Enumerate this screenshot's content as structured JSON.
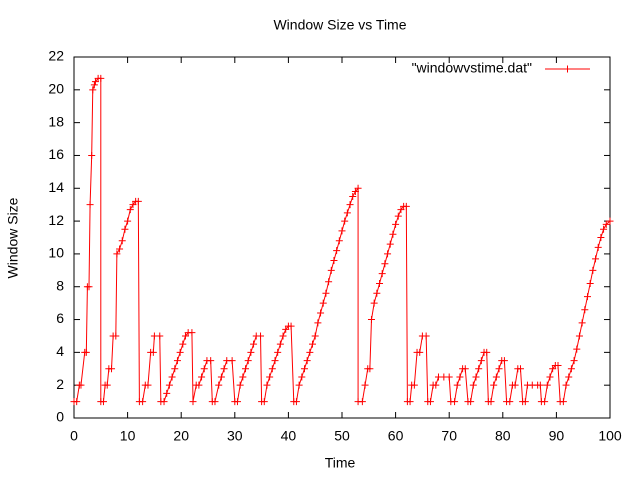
{
  "chart_data": {
    "type": "line",
    "title": "Window Size vs Time",
    "x_label": "Time",
    "y_label": "Window Size",
    "xlim": [
      0,
      100
    ],
    "xticks": [
      0,
      10,
      20,
      30,
      40,
      50,
      60,
      70,
      80,
      90,
      100
    ],
    "ylim": [
      0,
      22
    ],
    "yticks": [
      0,
      2,
      4,
      6,
      8,
      10,
      12,
      14,
      16,
      18,
      20,
      22
    ],
    "grid": false,
    "legend_position": "top-right",
    "series": [
      {
        "name": "\"windowvstime.dat\"",
        "color": "#ff0000",
        "x": [
          0,
          0.5,
          1,
          1.3,
          2,
          2.3,
          2.5,
          2.8,
          3,
          3.3,
          3.5,
          3.8,
          4,
          4.5,
          5,
          5,
          5.5,
          5.8,
          6.2,
          6.5,
          7,
          7.3,
          7.8,
          8,
          8.5,
          9,
          9.5,
          10,
          10.5,
          11,
          11.5,
          12,
          12.2,
          12.8,
          13.3,
          13.8,
          14.3,
          14.8,
          15,
          16,
          16.2,
          16.8,
          17.3,
          17.8,
          18.3,
          18.8,
          19.3,
          19.8,
          20.3,
          20.8,
          21.3,
          22,
          22.2,
          22.8,
          23.3,
          23.8,
          24.3,
          24.8,
          25.5,
          25.8,
          26.3,
          27,
          27.5,
          28,
          28.5,
          29.5,
          30,
          30.5,
          31,
          31.5,
          32,
          32.5,
          33,
          33.5,
          34,
          34.8,
          35,
          35.5,
          36,
          36.5,
          37,
          37.5,
          38,
          38.5,
          39,
          39.5,
          40,
          40.5,
          41,
          41.5,
          42,
          42.5,
          43,
          43.5,
          44,
          44.5,
          45,
          45.5,
          46,
          46.5,
          47,
          47.5,
          48,
          48.5,
          49,
          49.5,
          50,
          50.5,
          51,
          51.5,
          52,
          52.5,
          53,
          53,
          53.8,
          54.3,
          54.8,
          55.2,
          55.5,
          56,
          56.5,
          57,
          57.5,
          58,
          58.5,
          59,
          59.5,
          60,
          60.5,
          61,
          61.5,
          62,
          62.2,
          62.7,
          63,
          63.5,
          64,
          64.5,
          65,
          65.7,
          66,
          66.5,
          67,
          67.5,
          68,
          69,
          70,
          70.3,
          71,
          71.5,
          72,
          72.5,
          73,
          73.5,
          74,
          74.5,
          75,
          75.5,
          76,
          76.5,
          77,
          77.3,
          77.8,
          78.3,
          78.8,
          79.3,
          79.8,
          80.3,
          80.7,
          81.3,
          81.8,
          82.3,
          82.8,
          83.3,
          83.7,
          84.2,
          84.6,
          85.5,
          86.5,
          87,
          87.2,
          87.8,
          88.3,
          88.8,
          89.3,
          89.8,
          90.3,
          90.7,
          91.3,
          91.8,
          92.3,
          92.8,
          93.3,
          93.8,
          94.3,
          94.8,
          95.3,
          95.8,
          96.3,
          96.8,
          97.3,
          97.8,
          98.3,
          98.8,
          99.3,
          100
        ],
        "values": [
          1,
          1,
          2,
          2,
          4,
          4,
          8,
          8,
          13,
          16,
          20,
          20.3,
          20.5,
          20.7,
          20.7,
          1,
          1,
          2,
          2,
          3,
          3,
          5,
          5,
          10,
          10.3,
          10.8,
          11.5,
          12,
          12.7,
          13,
          13.2,
          13.2,
          1,
          1,
          2,
          2,
          4,
          4,
          5,
          5,
          1,
          1,
          1.5,
          2,
          2.5,
          3,
          3.5,
          4,
          4.5,
          5,
          5.2,
          5.2,
          1,
          2,
          2,
          2.5,
          3,
          3.5,
          3.5,
          1,
          1,
          2,
          2.5,
          3,
          3.5,
          3.5,
          1,
          1,
          2,
          2.5,
          3,
          3.5,
          4,
          4.5,
          5,
          5,
          1,
          1,
          2,
          2.5,
          3,
          3.5,
          4,
          4.5,
          5,
          5.4,
          5.6,
          5.6,
          1,
          1,
          2,
          2.5,
          3,
          3.5,
          4,
          4.5,
          5,
          5.8,
          6.4,
          7,
          7.6,
          8.3,
          9,
          9.6,
          10.2,
          10.8,
          11.4,
          12,
          12.5,
          13,
          13.5,
          13.8,
          14,
          1,
          1,
          2,
          3,
          3,
          6,
          7,
          7.6,
          8.2,
          8.8,
          9.4,
          10,
          10.6,
          11.2,
          11.8,
          12.3,
          12.7,
          12.9,
          12.9,
          1,
          1,
          2,
          2,
          4,
          4,
          5,
          5,
          1,
          1,
          2,
          2,
          2.5,
          2.5,
          2.5,
          1,
          1,
          2,
          2.5,
          3,
          3,
          1,
          1,
          2,
          2.5,
          3,
          3.5,
          4,
          4,
          1,
          1,
          2,
          2.5,
          3,
          3.5,
          3.5,
          1,
          1,
          2,
          2,
          3,
          3,
          1,
          1,
          2,
          2,
          2,
          2,
          1,
          1,
          2,
          2.5,
          3,
          3.2,
          3.2,
          1,
          1,
          2,
          2.5,
          3,
          3.5,
          4.2,
          5,
          5.8,
          6.6,
          7.4,
          8.2,
          9,
          9.7,
          10.4,
          11,
          11.5,
          11.8,
          12
        ]
      }
    ]
  }
}
